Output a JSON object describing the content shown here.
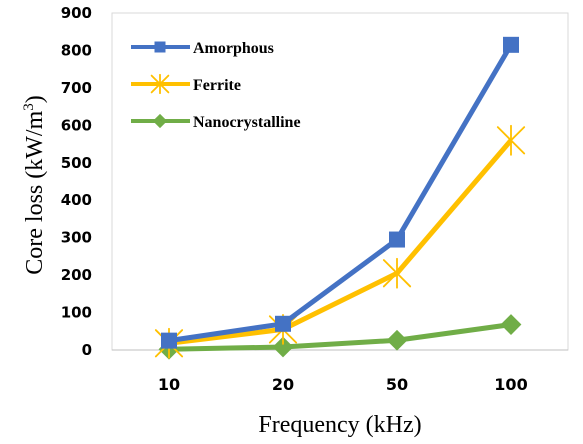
{
  "chart_data": {
    "type": "line",
    "categories": [
      "10",
      "20",
      "50",
      "100"
    ],
    "series": [
      {
        "name": "Amorphous",
        "values": [
          25,
          70,
          295,
          815
        ],
        "color": "#4472C4",
        "marker": "square"
      },
      {
        "name": "Ferrite",
        "values": [
          18,
          55,
          205,
          560
        ],
        "color": "#FFC000",
        "marker": "star"
      },
      {
        "name": "Nanocrystalline",
        "values": [
          2,
          8,
          26,
          68
        ],
        "color": "#70AD47",
        "marker": "diamond"
      }
    ],
    "xlabel": "Frequency (kHz)",
    "ylabel_main": "Core loss (kW/m",
    "ylabel_sup": "3",
    "ylabel_end": ")",
    "ylim": [
      0,
      900
    ],
    "yticks": [
      0,
      100,
      200,
      300,
      400,
      500,
      600,
      700,
      800,
      900
    ],
    "grid": false,
    "legend_position": "top-left"
  }
}
